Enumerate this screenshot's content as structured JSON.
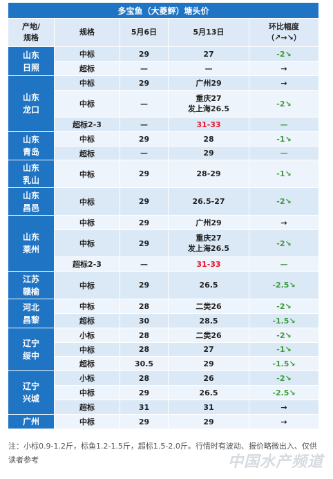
{
  "title": "多宝鱼（大菱鲆）塘头价",
  "headers": {
    "origin": [
      "产地/",
      "规格"
    ],
    "spec": "规格",
    "d1": "5月6日",
    "d2": "5月13日",
    "chg": [
      "环比幅度",
      "（↗→↘）"
    ]
  },
  "regions": [
    {
      "name": [
        "山东",
        "日照"
      ],
      "rows": [
        {
          "spec": "中标",
          "d1": "29",
          "d2": [
            "27"
          ],
          "chg": "-2↘"
        },
        {
          "spec": "超标",
          "d1": "—",
          "d2": [
            "—"
          ],
          "chg": "→"
        }
      ]
    },
    {
      "name": [
        "山东",
        "龙口"
      ],
      "rows": [
        {
          "spec": "中标",
          "d1": "29",
          "d2": [
            "广州29"
          ],
          "chg": "→"
        },
        {
          "spec": "中标",
          "d1": "—",
          "d2": [
            "重庆27",
            "发上海26.5"
          ],
          "chg": "-2↘"
        },
        {
          "spec": "超标2-3",
          "d1": "—",
          "d2": [
            "31-33"
          ],
          "chg": "—"
        }
      ]
    },
    {
      "name": [
        "山东",
        "青岛"
      ],
      "rows": [
        {
          "spec": "中标",
          "d1": "29",
          "d2": [
            "28"
          ],
          "chg": "-1↘"
        },
        {
          "spec": "超标",
          "d1": "—",
          "d2": [
            "29"
          ],
          "chg": "—"
        }
      ]
    },
    {
      "name": [
        "山东",
        "乳山"
      ],
      "rows": [
        {
          "spec": "中标",
          "d1": "29",
          "d2": [
            "28-29"
          ],
          "chg": "-1↘"
        }
      ]
    },
    {
      "name": [
        "山东",
        "昌邑"
      ],
      "rows": [
        {
          "spec": "中标",
          "d1": "29",
          "d2": [
            "26.5-27"
          ],
          "chg": "-2↘"
        }
      ]
    },
    {
      "name": [
        "山东",
        "莱州"
      ],
      "rows": [
        {
          "spec": "中标",
          "d1": "29",
          "d2": [
            "广州29"
          ],
          "chg": "→"
        },
        {
          "spec": "中标",
          "d1": "29",
          "d2": [
            "重庆27",
            "发上海26.5"
          ],
          "chg": "-2↘"
        },
        {
          "spec": "超标2-3",
          "d1": "—",
          "d2": [
            "31-33"
          ],
          "chg": "—"
        }
      ]
    },
    {
      "name": [
        "江苏",
        "赣榆"
      ],
      "rows": [
        {
          "spec": "中标",
          "d1": "29",
          "d2": [
            "26.5"
          ],
          "chg": "-2.5↘"
        }
      ]
    },
    {
      "name": [
        "河北",
        "昌黎"
      ],
      "rows": [
        {
          "spec": "中标",
          "d1": "28",
          "d2": [
            "二类26"
          ],
          "chg": "-2↘"
        },
        {
          "spec": "超标",
          "d1": "30",
          "d2": [
            "28.5"
          ],
          "chg": "-1.5↘"
        }
      ]
    },
    {
      "name": [
        "辽宁",
        "绥中"
      ],
      "rows": [
        {
          "spec": "小标",
          "d1": "28",
          "d2": [
            "二类26"
          ],
          "chg": "-2↘"
        },
        {
          "spec": "中标",
          "d1": "28",
          "d2": [
            "27"
          ],
          "chg": "-1↘"
        },
        {
          "spec": "超标",
          "d1": "30.5",
          "d2": [
            "29"
          ],
          "chg": "-1.5↘"
        }
      ]
    },
    {
      "name": [
        "辽宁",
        "兴城"
      ],
      "rows": [
        {
          "spec": "小标",
          "d1": "28",
          "d2": [
            "26"
          ],
          "chg": "-2↘"
        },
        {
          "spec": "中标",
          "d1": "29",
          "d2": [
            "26.5"
          ],
          "chg": "-2.5↘"
        },
        {
          "spec": "超标",
          "d1": "31",
          "d2": [
            "31"
          ],
          "chg": "→"
        }
      ]
    },
    {
      "name": [
        "广州"
      ],
      "rows": [
        {
          "spec": "中标",
          "d1": "29",
          "d2": [
            "29"
          ],
          "chg": "→"
        }
      ]
    }
  ],
  "colors": {
    "header_blue": "#1f74c4",
    "red_price": "#e8132b",
    "green_change": "#3d9b3a"
  },
  "note": "注：小标0.9-1.2斤，标鱼1.2-1.5斤，超标1.5-2.0斤。行情时有波动、报价略微出入、仅供读者参考",
  "watermark": "中国水产频道"
}
